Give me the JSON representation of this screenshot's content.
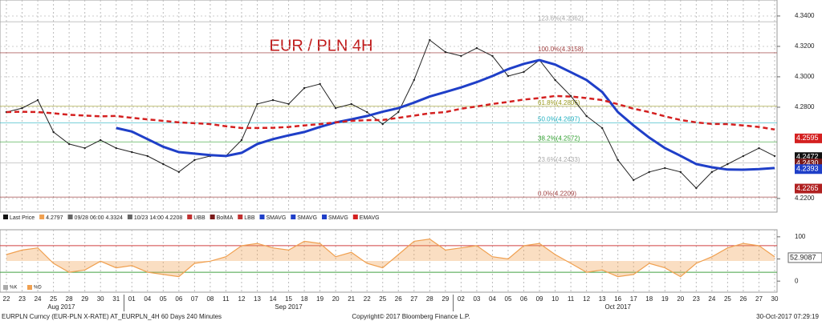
{
  "chart_data": [
    {
      "type": "line",
      "title": "EUR / PLN 4H",
      "categories": [
        "22",
        "23",
        "24",
        "25",
        "28",
        "29",
        "30",
        "31",
        "01",
        "04",
        "05",
        "06",
        "07",
        "08",
        "11",
        "12",
        "13",
        "14",
        "15",
        "18",
        "19",
        "20",
        "21",
        "22",
        "25",
        "26",
        "27",
        "28",
        "29",
        "02",
        "03",
        "04",
        "05",
        "06",
        "09",
        "10",
        "11",
        "12",
        "13",
        "16",
        "17",
        "18",
        "19",
        "20",
        "23",
        "24",
        "25",
        "26",
        "27",
        "30"
      ],
      "months": [
        "Aug 2017",
        "Sep 2017",
        "Oct 2017"
      ],
      "ylim": [
        4.211,
        4.3505
      ],
      "yticks": [
        {
          "value": 4.34,
          "label": "4.3400"
        },
        {
          "value": 4.32,
          "label": "4.3200"
        },
        {
          "value": 4.3,
          "label": "4.3000"
        },
        {
          "value": 4.28,
          "label": "4.2800"
        },
        {
          "value": 4.22,
          "label": "4.2200"
        }
      ],
      "grid": true,
      "legend": [
        "Last Price",
        "4.2797",
        "09/28 06:00 4.3324",
        "10/23 14:00 4.2208",
        "UBB",
        "BolMA",
        "LBB",
        "SMAVG",
        "SMAVG",
        "SMAVG",
        "EMAVG"
      ],
      "series": [
        {
          "name": "Last Price",
          "color": "#222222",
          "values": [
            4.2768,
            4.2794,
            4.2847,
            4.2637,
            4.2558,
            4.2531,
            4.2584,
            4.2531,
            4.2505,
            4.2479,
            4.2426,
            4.2374,
            4.2453,
            4.2479,
            4.2479,
            4.2584,
            4.2821,
            4.2847,
            4.2821,
            4.2926,
            4.2953,
            4.2794,
            4.2821,
            4.2768,
            4.2689,
            4.2768,
            4.2979,
            4.3242,
            4.3163,
            4.3137,
            4.3189,
            4.3137,
            4.3005,
            4.3032,
            4.311,
            4.2979,
            4.2874,
            4.2742,
            4.2663,
            4.2453,
            4.2321,
            4.2374,
            4.24,
            4.2374,
            4.2268,
            4.2374,
            4.2426,
            4.2479,
            4.2531,
            4.2479
          ]
        },
        {
          "name": "SMAVG",
          "color": "#1f3fc8",
          "values": [
            null,
            null,
            null,
            null,
            null,
            null,
            null,
            4.2663,
            4.264,
            4.259,
            4.254,
            4.2505,
            4.2495,
            4.2485,
            4.2479,
            4.25,
            4.2558,
            4.259,
            4.2615,
            4.2637,
            4.267,
            4.27,
            4.272,
            4.2742,
            4.277,
            4.2794,
            4.283,
            4.287,
            4.29,
            4.293,
            4.2965,
            4.3005,
            4.305,
            4.3085,
            4.311,
            4.308,
            4.303,
            4.2979,
            4.29,
            4.2768,
            4.268,
            4.26,
            4.2531,
            4.248,
            4.2426,
            4.2405,
            4.239,
            4.2389,
            4.2393,
            4.24
          ]
        },
        {
          "name": "EMAVG",
          "color": "#d42020",
          "values": [
            4.2768,
            4.277,
            4.2768,
            4.276,
            4.275,
            4.2745,
            4.274,
            4.2742,
            4.273,
            4.272,
            4.271,
            4.27,
            4.2695,
            4.2689,
            4.2675,
            4.2663,
            4.2663,
            4.2665,
            4.267,
            4.268,
            4.2689,
            4.27,
            4.271,
            4.2715,
            4.2716,
            4.273,
            4.2745,
            4.276,
            4.2768,
            4.279,
            4.2805,
            4.2821,
            4.2835,
            4.285,
            4.286,
            4.2874,
            4.287,
            4.286,
            4.2847,
            4.282,
            4.279,
            4.2768,
            4.274,
            4.2716,
            4.27,
            4.269,
            4.2689,
            4.268,
            4.267,
            4.2653
          ]
        }
      ],
      "fib_levels": [
        {
          "value": 4.3362,
          "label": "123.6%(4.3362)",
          "color": "#aaaaaa"
        },
        {
          "value": 4.3158,
          "label": "100.0%(4.3158)",
          "color": "#a04040"
        },
        {
          "value": 4.2806,
          "label": "61.8%(4.2806)",
          "color": "#9a9a20"
        },
        {
          "value": 4.2697,
          "label": "50.0%(4.2697)",
          "color": "#20b0c0"
        },
        {
          "value": 4.2572,
          "label": "38.2%(4.2572)",
          "color": "#30a030"
        },
        {
          "value": 4.2433,
          "label": "23.6%(4.2433)",
          "color": "#aaaaaa"
        },
        {
          "value": 4.2209,
          "label": "0.0%(4.2209)",
          "color": "#a04040"
        }
      ],
      "price_labels": [
        {
          "value": 4.2595,
          "label": "4.2595",
          "color": "#d42020"
        },
        {
          "value": 4.2472,
          "label": "4.2472",
          "color": "#111111"
        },
        {
          "value": 4.243,
          "label": "4.2430",
          "color": "#7a1a1a"
        },
        {
          "value": 4.2393,
          "label": "4.2393",
          "color": "#1f3fc8"
        },
        {
          "value": 4.2265,
          "label": "4.2265",
          "color": "#b02020"
        }
      ]
    },
    {
      "type": "area",
      "ylim": [
        -25,
        116
      ],
      "yticks": [
        0,
        50,
        100
      ],
      "levels": [
        {
          "value": 80,
          "color": "#d04040"
        },
        {
          "value": 20,
          "color": "#40a040"
        }
      ],
      "legend": [
        "%K",
        "%D"
      ],
      "current_label": {
        "value": 52.9087,
        "label": "52.9087"
      },
      "series": [
        {
          "name": "%K",
          "color": "#f0a050",
          "values": [
            60,
            70,
            75,
            40,
            20,
            25,
            45,
            30,
            35,
            20,
            15,
            10,
            40,
            45,
            55,
            80,
            85,
            75,
            70,
            90,
            85,
            55,
            65,
            40,
            30,
            60,
            90,
            95,
            70,
            75,
            80,
            55,
            50,
            80,
            85,
            60,
            40,
            20,
            25,
            10,
            15,
            40,
            30,
            10,
            40,
            55,
            75,
            85,
            80,
            55
          ]
        }
      ]
    },
    {
      "type": "footer",
      "left": "EURPLN Curncy (EUR-PLN X-RATE) AT_EURPLN_4H 60 Days 240 Minutes",
      "center": "Copyright© 2017 Bloomberg Finance L.P.",
      "right": "30-Oct-2017 07:29:19"
    }
  ]
}
